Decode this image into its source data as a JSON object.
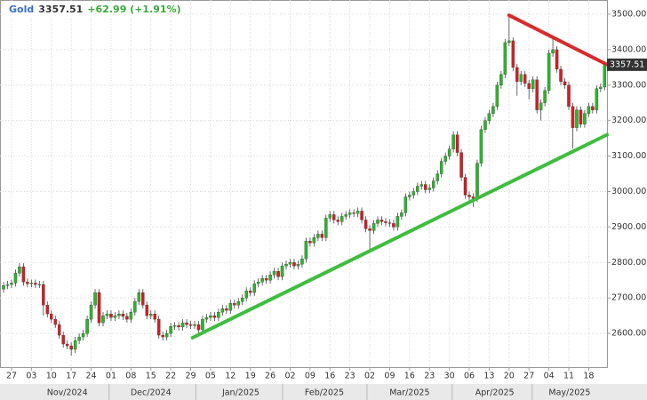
{
  "chart_data": {
    "type": "candlestick",
    "header": {
      "symbol": "Gold",
      "change": "+62.99 (+1.91%)"
    },
    "up_color": "#2bb52b",
    "down_color": "#d21e24",
    "open": [
      2725,
      2735,
      2738,
      2742,
      2770,
      2788,
      2745,
      2740,
      2742,
      2738,
      2738,
      2680,
      2655,
      2640,
      2625,
      2595,
      2570,
      2565,
      2555,
      2580,
      2590,
      2600,
      2640,
      2680,
      2715,
      2630,
      2650,
      2655,
      2645,
      2650,
      2655,
      2648,
      2640,
      2660,
      2690,
      2715,
      2680,
      2650,
      2655,
      2640,
      2595,
      2590,
      2600,
      2620,
      2622,
      2618,
      2630,
      2625,
      2622,
      2625,
      2610,
      2640,
      2645,
      2650,
      2645,
      2660,
      2670,
      2665,
      2685,
      2680,
      2690,
      2700,
      2720,
      2715,
      2740,
      2745,
      2755,
      2750,
      2765,
      2775,
      2760,
      2790,
      2795,
      2800,
      2790,
      2795,
      2810,
      2860,
      2855,
      2870,
      2880,
      2870,
      2925,
      2935,
      2920,
      2915,
      2930,
      2935,
      2940,
      2938,
      2945,
      2920,
      2895,
      2890,
      2910,
      2920,
      2915,
      2912,
      2910,
      2900,
      2930,
      2940,
      2985,
      2990,
      3000,
      3015,
      3020,
      3005,
      3010,
      3030,
      3050,
      3085,
      3100,
      3120,
      3160,
      3110,
      3040,
      2990,
      2985,
      2980,
      3080,
      3175,
      3200,
      3220,
      3240,
      3300,
      3330,
      3420,
      3425,
      3350,
      3310,
      3330,
      3305,
      3290,
      3315,
      3230,
      3250,
      3285,
      3390,
      3400,
      3345,
      3310,
      3300,
      3240,
      3180,
      3230,
      3190,
      3220,
      3240,
      3230,
      3290,
      3294.52
    ],
    "high": [
      2745,
      2748,
      2752,
      2780,
      2798,
      2798,
      2755,
      2752,
      2752,
      2748,
      2748,
      2690,
      2665,
      2650,
      2635,
      2605,
      2580,
      2575,
      2590,
      2600,
      2610,
      2650,
      2690,
      2725,
      2725,
      2660,
      2665,
      2665,
      2660,
      2665,
      2665,
      2658,
      2670,
      2700,
      2725,
      2725,
      2690,
      2665,
      2665,
      2650,
      2605,
      2610,
      2630,
      2632,
      2632,
      2640,
      2640,
      2635,
      2635,
      2635,
      2650,
      2655,
      2660,
      2660,
      2670,
      2680,
      2680,
      2695,
      2695,
      2700,
      2710,
      2730,
      2730,
      2750,
      2755,
      2765,
      2765,
      2775,
      2785,
      2785,
      2800,
      2805,
      2810,
      2810,
      2805,
      2820,
      2870,
      2870,
      2880,
      2890,
      2890,
      2935,
      2945,
      2945,
      2930,
      2940,
      2945,
      2950,
      2950,
      2955,
      2955,
      2930,
      2905,
      2920,
      2930,
      2930,
      2925,
      2922,
      2920,
      2940,
      2950,
      2995,
      3000,
      3010,
      3025,
      3030,
      3030,
      3020,
      3040,
      3060,
      3095,
      3110,
      3130,
      3170,
      3170,
      3120,
      3050,
      3000,
      2995,
      3090,
      3185,
      3210,
      3230,
      3250,
      3310,
      3340,
      3430,
      3500,
      3435,
      3360,
      3340,
      3340,
      3315,
      3325,
      3325,
      3260,
      3295,
      3400,
      3435,
      3410,
      3355,
      3320,
      3310,
      3250,
      3240,
      3240,
      3230,
      3250,
      3250,
      3300,
      3305,
      3365
    ],
    "low": [
      2715,
      2725,
      2728,
      2732,
      2760,
      2735,
      2730,
      2730,
      2728,
      2728,
      2650,
      2645,
      2630,
      2615,
      2585,
      2560,
      2555,
      2537,
      2545,
      2570,
      2580,
      2590,
      2630,
      2670,
      2620,
      2620,
      2640,
      2635,
      2635,
      2640,
      2638,
      2630,
      2630,
      2650,
      2680,
      2670,
      2640,
      2640,
      2630,
      2585,
      2580,
      2580,
      2590,
      2610,
      2608,
      2608,
      2615,
      2612,
      2612,
      2600,
      2600,
      2630,
      2635,
      2635,
      2635,
      2650,
      2655,
      2655,
      2670,
      2670,
      2680,
      2690,
      2705,
      2705,
      2730,
      2735,
      2740,
      2740,
      2755,
      2750,
      2750,
      2780,
      2785,
      2780,
      2780,
      2785,
      2800,
      2845,
      2845,
      2860,
      2860,
      2860,
      2915,
      2910,
      2905,
      2905,
      2920,
      2925,
      2928,
      2928,
      2910,
      2885,
      2832,
      2880,
      2900,
      2905,
      2902,
      2900,
      2890,
      2890,
      2920,
      2930,
      2975,
      2980,
      2990,
      3005,
      2995,
      2995,
      3000,
      3020,
      3040,
      3075,
      3090,
      3110,
      3100,
      3030,
      2980,
      2970,
      2957,
      2970,
      3070,
      3165,
      3190,
      3210,
      3230,
      3290,
      3320,
      3410,
      3340,
      3270,
      3300,
      3295,
      3260,
      3280,
      3220,
      3200,
      3240,
      3275,
      3380,
      3335,
      3300,
      3290,
      3230,
      3121,
      3170,
      3180,
      3180,
      3210,
      3220,
      3220,
      3280,
      3285
    ],
    "close": [
      2735,
      2738,
      2742,
      2770,
      2788,
      2745,
      2740,
      2742,
      2738,
      2738,
      2680,
      2655,
      2640,
      2625,
      2595,
      2570,
      2565,
      2555,
      2580,
      2590,
      2600,
      2640,
      2680,
      2715,
      2630,
      2650,
      2655,
      2645,
      2650,
      2655,
      2648,
      2640,
      2660,
      2690,
      2715,
      2680,
      2650,
      2655,
      2640,
      2595,
      2590,
      2600,
      2620,
      2622,
      2618,
      2630,
      2625,
      2622,
      2625,
      2610,
      2640,
      2645,
      2650,
      2645,
      2660,
      2670,
      2665,
      2685,
      2680,
      2690,
      2700,
      2720,
      2715,
      2740,
      2745,
      2755,
      2750,
      2765,
      2775,
      2760,
      2790,
      2795,
      2800,
      2790,
      2795,
      2810,
      2860,
      2855,
      2870,
      2880,
      2870,
      2925,
      2935,
      2920,
      2915,
      2930,
      2935,
      2940,
      2938,
      2945,
      2920,
      2895,
      2890,
      2910,
      2920,
      2915,
      2912,
      2910,
      2900,
      2930,
      2940,
      2985,
      2990,
      3000,
      3015,
      3020,
      3005,
      3010,
      3030,
      3050,
      3085,
      3100,
      3120,
      3160,
      3110,
      3040,
      2990,
      2985,
      2980,
      3080,
      3175,
      3200,
      3220,
      3240,
      3300,
      3330,
      3420,
      3425,
      3350,
      3310,
      3330,
      3305,
      3290,
      3315,
      3230,
      3250,
      3285,
      3390,
      3400,
      3345,
      3310,
      3300,
      3240,
      3180,
      3230,
      3190,
      3220,
      3240,
      3230,
      3290,
      3294.52,
      3357.51
    ],
    "trendlines": [
      {
        "color": "#d92a2a",
        "x": [
          127,
          151.6
        ],
        "y": [
          3497,
          3358
        ]
      },
      {
        "color": "#3ebd3e",
        "x": [
          47.5,
          151.6
        ],
        "y": [
          2588,
          3160
        ]
      }
    ],
    "xlim": [
      -0.9,
      151.6
    ],
    "ylim": [
      2505,
      3540
    ],
    "yticks": [
      {
        "value": 2600,
        "label": "2600.00"
      },
      {
        "value": 2700,
        "label": "2700.00"
      },
      {
        "value": 2800,
        "label": "2800.00"
      },
      {
        "value": 2900,
        "label": "2900.00"
      },
      {
        "value": 3000,
        "label": "3000.00"
      },
      {
        "value": 3100,
        "label": "3100.00"
      },
      {
        "value": 3200,
        "label": "3200.00"
      },
      {
        "value": 3300,
        "label": "3300.00"
      },
      {
        "value": 3400,
        "label": "3400.00"
      },
      {
        "value": 3500,
        "label": "3500.00"
      }
    ],
    "xticks": [
      {
        "value": 2,
        "label": "27"
      },
      {
        "value": 7,
        "label": "03"
      },
      {
        "value": 12,
        "label": "10"
      },
      {
        "value": 17,
        "label": "17"
      },
      {
        "value": 22,
        "label": "24"
      },
      {
        "value": 27,
        "label": "01"
      },
      {
        "value": 32,
        "label": "08"
      },
      {
        "value": 37,
        "label": "15"
      },
      {
        "value": 42,
        "label": "22"
      },
      {
        "value": 47,
        "label": "29"
      },
      {
        "value": 52,
        "label": "05"
      },
      {
        "value": 57,
        "label": "12"
      },
      {
        "value": 62,
        "label": "19"
      },
      {
        "value": 67,
        "label": "26"
      },
      {
        "value": 72,
        "label": "02"
      },
      {
        "value": 77,
        "label": "09"
      },
      {
        "value": 82,
        "label": "16"
      },
      {
        "value": 87,
        "label": "23"
      },
      {
        "value": 92,
        "label": "02"
      },
      {
        "value": 97,
        "label": "09"
      },
      {
        "value": 102,
        "label": "16"
      },
      {
        "value": 107,
        "label": "23"
      },
      {
        "value": 112,
        "label": "30"
      },
      {
        "value": 117,
        "label": "06"
      },
      {
        "value": 122,
        "label": "13"
      },
      {
        "value": 127,
        "label": "20"
      },
      {
        "value": 132,
        "label": "27"
      },
      {
        "value": 137,
        "label": "04"
      },
      {
        "value": 142,
        "label": "11"
      },
      {
        "value": 147,
        "label": "18"
      }
    ],
    "month_labels": [
      {
        "value": 16,
        "label": "Nov/2024"
      },
      {
        "value": 37,
        "label": "Dec/2024"
      },
      {
        "value": 59.6,
        "label": "Jan/2025"
      },
      {
        "value": 80.6,
        "label": "Feb/2025"
      },
      {
        "value": 102,
        "label": "Mar/2025"
      },
      {
        "value": 123.4,
        "label": "Apr/2025"
      },
      {
        "value": 142.2,
        "label": "May/2025"
      }
    ],
    "grid": true
  }
}
